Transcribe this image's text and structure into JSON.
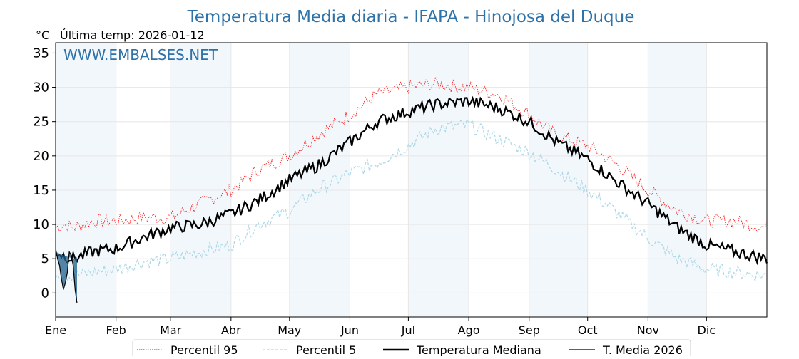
{
  "chart_data": {
    "type": "line",
    "title": "Temperatura Media diaria - IFAPA - Hinojosa del Duque",
    "unit_label": "°C",
    "subtitle": "Última temp: 2026-01-12",
    "watermark": "WWW.EMBALSES.NET",
    "xlabel": "",
    "ylabel": "°C",
    "ylim": [
      -3.5,
      36.5
    ],
    "y_ticks": [
      0,
      5,
      10,
      15,
      20,
      25,
      30,
      35
    ],
    "x_range_days": [
      1,
      366
    ],
    "month_labels": [
      "Ene",
      "Feb",
      "Mar",
      "Abr",
      "May",
      "Jun",
      "Jul",
      "Ago",
      "Sep",
      "Oct",
      "Nov",
      "Dic"
    ],
    "month_start_days": [
      1,
      32,
      60,
      91,
      121,
      152,
      182,
      213,
      244,
      274,
      305,
      335
    ],
    "shaded_months": [
      0,
      2,
      4,
      6,
      8,
      10
    ],
    "grid": true,
    "legend_position": "bottom-center",
    "series": [
      {
        "name": "Percentil 95",
        "style": "dotted",
        "color": "#ff0000",
        "days": [
          1,
          5,
          10,
          20,
          32,
          45,
          60,
          75,
          91,
          105,
          121,
          135,
          152,
          166,
          182,
          196,
          213,
          228,
          244,
          258,
          274,
          290,
          305,
          320,
          335,
          350,
          366
        ],
        "values": [
          9.5,
          10,
          9.5,
          10.5,
          10.5,
          11,
          11,
          13,
          15,
          18,
          20,
          23,
          26,
          29,
          30,
          30.5,
          30,
          29,
          26,
          23,
          21.5,
          18.5,
          15,
          12,
          10.5,
          10.5,
          9.5
        ]
      },
      {
        "name": "Percentil 5",
        "style": "dashed",
        "color": "#add8e6",
        "days": [
          1,
          10,
          20,
          32,
          45,
          60,
          75,
          91,
          105,
          121,
          135,
          152,
          166,
          182,
          196,
          213,
          228,
          244,
          258,
          274,
          290,
          305,
          320,
          335,
          350,
          366
        ],
        "values": [
          3,
          2.5,
          3,
          3.5,
          4.5,
          5,
          6,
          7,
          10,
          12,
          15,
          17.5,
          19,
          21.5,
          24,
          24.5,
          22.5,
          20.5,
          18,
          15,
          11.5,
          8,
          5,
          3.5,
          3,
          2.5
        ]
      },
      {
        "name": "Temperatura Mediana",
        "style": "solid",
        "color": "#000000",
        "days": [
          1,
          5,
          10,
          20,
          32,
          45,
          60,
          75,
          91,
          105,
          121,
          135,
          152,
          166,
          182,
          196,
          213,
          228,
          244,
          258,
          274,
          290,
          305,
          320,
          335,
          350,
          366
        ],
        "values": [
          6,
          5.5,
          5,
          6,
          6.5,
          8,
          9.5,
          10,
          11.5,
          13.5,
          16.5,
          18.5,
          22,
          25,
          26.5,
          27.5,
          28,
          27,
          25,
          22,
          19.5,
          16,
          13,
          9.5,
          7,
          6,
          5
        ]
      },
      {
        "name": "T. Media 2026",
        "style": "solid-thin-filled",
        "color": "#000000",
        "fill": "#1f5f8b",
        "days": [
          1,
          2,
          3,
          4,
          5,
          6,
          7,
          8,
          9,
          10,
          11,
          12
        ],
        "values": [
          6.5,
          5,
          4,
          2,
          0.5,
          1.5,
          3,
          6,
          5.5,
          4,
          0.5,
          -1.5
        ]
      }
    ],
    "legend": [
      "Percentil 95",
      "Percentil 5",
      "Temperatura Mediana",
      "T. Media 2026"
    ]
  }
}
